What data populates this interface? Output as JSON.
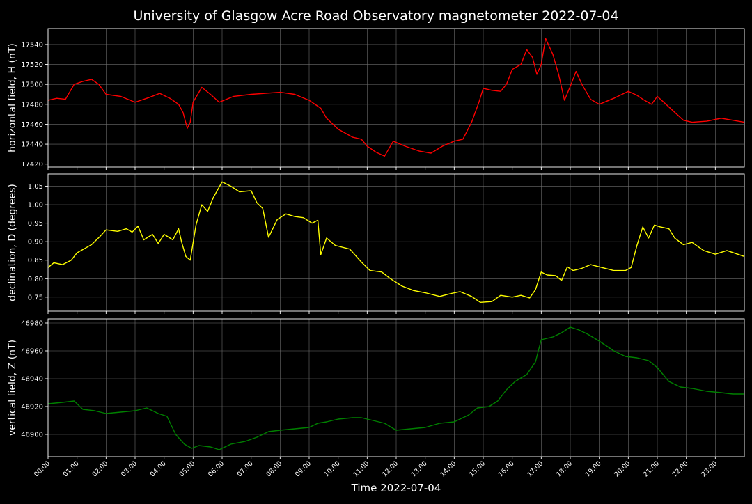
{
  "figure": {
    "title": "University of Glasgow Acre Road Observatory magnetometer 2022-07-04",
    "xlabel": "Time 2022-07-04",
    "background": "#000000"
  },
  "chart_data": [
    {
      "type": "line",
      "title": "",
      "ylabel": "horizontal field, H (nT)",
      "xlabel": "",
      "x_unit": "hours",
      "xlim": [
        0,
        24
      ],
      "ylim": [
        17417,
        17556
      ],
      "yticks": [
        17420,
        17440,
        17460,
        17480,
        17500,
        17520,
        17540
      ],
      "grid": true,
      "series": [
        {
          "color": "#ff0000",
          "points": [
            [
              0,
              17484
            ],
            [
              0.3,
              17486
            ],
            [
              0.6,
              17485
            ],
            [
              0.9,
              17500
            ],
            [
              1.2,
              17503
            ],
            [
              1.5,
              17505
            ],
            [
              1.75,
              17500
            ],
            [
              2.0,
              17490
            ],
            [
              2.5,
              17488
            ],
            [
              3.0,
              17482
            ],
            [
              3.5,
              17487
            ],
            [
              3.85,
              17491
            ],
            [
              4.2,
              17486
            ],
            [
              4.5,
              17480
            ],
            [
              4.65,
              17472
            ],
            [
              4.8,
              17456
            ],
            [
              4.9,
              17462
            ],
            [
              5.0,
              17482
            ],
            [
              5.3,
              17497
            ],
            [
              5.6,
              17490
            ],
            [
              5.9,
              17482
            ],
            [
              6.4,
              17488
            ],
            [
              7.0,
              17490
            ],
            [
              7.5,
              17491
            ],
            [
              8.0,
              17492
            ],
            [
              8.5,
              17490
            ],
            [
              9.0,
              17484
            ],
            [
              9.4,
              17476
            ],
            [
              9.6,
              17466
            ],
            [
              10.0,
              17455
            ],
            [
              10.5,
              17447
            ],
            [
              10.8,
              17445
            ],
            [
              11.0,
              17438
            ],
            [
              11.3,
              17432
            ],
            [
              11.6,
              17428
            ],
            [
              11.9,
              17443
            ],
            [
              12.3,
              17438
            ],
            [
              12.8,
              17433
            ],
            [
              13.2,
              17431
            ],
            [
              13.6,
              17438
            ],
            [
              14.0,
              17443
            ],
            [
              14.3,
              17445
            ],
            [
              14.6,
              17462
            ],
            [
              14.85,
              17482
            ],
            [
              15.0,
              17496
            ],
            [
              15.3,
              17494
            ],
            [
              15.6,
              17493
            ],
            [
              15.8,
              17500
            ],
            [
              16.0,
              17515
            ],
            [
              16.3,
              17520
            ],
            [
              16.5,
              17535
            ],
            [
              16.7,
              17527
            ],
            [
              16.85,
              17510
            ],
            [
              17.0,
              17520
            ],
            [
              17.15,
              17546
            ],
            [
              17.4,
              17530
            ],
            [
              17.6,
              17510
            ],
            [
              17.8,
              17484
            ],
            [
              18.0,
              17498
            ],
            [
              18.2,
              17513
            ],
            [
              18.4,
              17500
            ],
            [
              18.7,
              17485
            ],
            [
              19.0,
              17480
            ],
            [
              19.5,
              17486
            ],
            [
              20.0,
              17493
            ],
            [
              20.3,
              17489
            ],
            [
              20.5,
              17485
            ],
            [
              20.8,
              17480
            ],
            [
              21.0,
              17488
            ],
            [
              21.3,
              17480
            ],
            [
              21.6,
              17472
            ],
            [
              21.9,
              17464
            ],
            [
              22.2,
              17462
            ],
            [
              22.7,
              17463
            ],
            [
              23.2,
              17466
            ],
            [
              23.6,
              17464
            ],
            [
              24.0,
              17462
            ]
          ]
        }
      ]
    },
    {
      "type": "line",
      "title": "",
      "ylabel": "declination, D (degrees)",
      "xlabel": "",
      "x_unit": "hours",
      "xlim": [
        0,
        24
      ],
      "ylim": [
        0.712,
        1.083
      ],
      "yticks": [
        0.75,
        0.8,
        0.85,
        0.9,
        0.95,
        1.0,
        1.05
      ],
      "grid": true,
      "series": [
        {
          "color": "#ffff00",
          "points": [
            [
              0,
              0.83
            ],
            [
              0.2,
              0.843
            ],
            [
              0.5,
              0.838
            ],
            [
              0.8,
              0.85
            ],
            [
              1.0,
              0.87
            ],
            [
              1.5,
              0.892
            ],
            [
              1.8,
              0.915
            ],
            [
              2.0,
              0.932
            ],
            [
              2.4,
              0.928
            ],
            [
              2.7,
              0.935
            ],
            [
              2.9,
              0.926
            ],
            [
              3.1,
              0.942
            ],
            [
              3.3,
              0.905
            ],
            [
              3.6,
              0.92
            ],
            [
              3.8,
              0.895
            ],
            [
              4.0,
              0.92
            ],
            [
              4.3,
              0.905
            ],
            [
              4.5,
              0.935
            ],
            [
              4.6,
              0.9
            ],
            [
              4.75,
              0.86
            ],
            [
              4.9,
              0.85
            ],
            [
              5.1,
              0.945
            ],
            [
              5.3,
              1.0
            ],
            [
              5.5,
              0.982
            ],
            [
              5.7,
              1.02
            ],
            [
              6.0,
              1.062
            ],
            [
              6.3,
              1.05
            ],
            [
              6.6,
              1.035
            ],
            [
              7.0,
              1.038
            ],
            [
              7.2,
              1.005
            ],
            [
              7.4,
              0.99
            ],
            [
              7.6,
              0.912
            ],
            [
              7.9,
              0.96
            ],
            [
              8.2,
              0.975
            ],
            [
              8.5,
              0.968
            ],
            [
              8.8,
              0.965
            ],
            [
              9.1,
              0.95
            ],
            [
              9.3,
              0.958
            ],
            [
              9.4,
              0.865
            ],
            [
              9.6,
              0.91
            ],
            [
              9.9,
              0.89
            ],
            [
              10.4,
              0.88
            ],
            [
              10.8,
              0.845
            ],
            [
              11.1,
              0.822
            ],
            [
              11.5,
              0.818
            ],
            [
              11.8,
              0.8
            ],
            [
              12.2,
              0.78
            ],
            [
              12.6,
              0.768
            ],
            [
              13.0,
              0.762
            ],
            [
              13.5,
              0.752
            ],
            [
              13.9,
              0.76
            ],
            [
              14.2,
              0.765
            ],
            [
              14.6,
              0.752
            ],
            [
              14.9,
              0.736
            ],
            [
              15.3,
              0.738
            ],
            [
              15.6,
              0.755
            ],
            [
              16.0,
              0.75
            ],
            [
              16.3,
              0.755
            ],
            [
              16.6,
              0.748
            ],
            [
              16.8,
              0.77
            ],
            [
              17.0,
              0.818
            ],
            [
              17.2,
              0.81
            ],
            [
              17.5,
              0.808
            ],
            [
              17.7,
              0.795
            ],
            [
              17.9,
              0.832
            ],
            [
              18.1,
              0.822
            ],
            [
              18.4,
              0.828
            ],
            [
              18.7,
              0.838
            ],
            [
              19.0,
              0.832
            ],
            [
              19.5,
              0.822
            ],
            [
              19.9,
              0.822
            ],
            [
              20.1,
              0.83
            ],
            [
              20.3,
              0.89
            ],
            [
              20.5,
              0.94
            ],
            [
              20.7,
              0.91
            ],
            [
              20.9,
              0.945
            ],
            [
              21.1,
              0.94
            ],
            [
              21.4,
              0.935
            ],
            [
              21.6,
              0.91
            ],
            [
              21.9,
              0.892
            ],
            [
              22.2,
              0.898
            ],
            [
              22.6,
              0.876
            ],
            [
              23.0,
              0.866
            ],
            [
              23.4,
              0.876
            ],
            [
              24.0,
              0.86
            ]
          ]
        }
      ]
    },
    {
      "type": "line",
      "title": "",
      "ylabel": "vertical field, Z (nT)",
      "xlabel": "Time 2022-07-04",
      "x_unit": "hours",
      "xlim": [
        0,
        24
      ],
      "ylim": [
        46884,
        46983
      ],
      "yticks": [
        46900,
        46920,
        46940,
        46960,
        46980
      ],
      "xticks": [
        "00:00",
        "01:00",
        "02:00",
        "03:00",
        "04:00",
        "05:00",
        "06:00",
        "07:00",
        "08:00",
        "09:00",
        "10:00",
        "11:00",
        "12:00",
        "13:00",
        "14:00",
        "15:00",
        "16:00",
        "17:00",
        "18:00",
        "19:00",
        "20:00",
        "21:00",
        "22:00",
        "23:00"
      ],
      "grid": true,
      "series": [
        {
          "color": "#008000",
          "points": [
            [
              0,
              46922
            ],
            [
              0.5,
              46923
            ],
            [
              0.9,
              46924
            ],
            [
              1.2,
              46918
            ],
            [
              1.6,
              46917
            ],
            [
              2.0,
              46915
            ],
            [
              2.5,
              46916
            ],
            [
              3.0,
              46917
            ],
            [
              3.4,
              46919
            ],
            [
              3.8,
              46915
            ],
            [
              4.1,
              46913
            ],
            [
              4.4,
              46900
            ],
            [
              4.7,
              46893
            ],
            [
              4.95,
              46890
            ],
            [
              5.2,
              46892
            ],
            [
              5.6,
              46891
            ],
            [
              5.9,
              46889
            ],
            [
              6.3,
              46893
            ],
            [
              6.8,
              46895
            ],
            [
              7.2,
              46898
            ],
            [
              7.6,
              46902
            ],
            [
              8.0,
              46903
            ],
            [
              8.5,
              46904
            ],
            [
              9.0,
              46905
            ],
            [
              9.3,
              46908
            ],
            [
              9.6,
              46909
            ],
            [
              10.0,
              46911
            ],
            [
              10.5,
              46912
            ],
            [
              10.8,
              46912
            ],
            [
              11.2,
              46910
            ],
            [
              11.6,
              46908
            ],
            [
              12.0,
              46903
            ],
            [
              12.5,
              46904
            ],
            [
              13.0,
              46905
            ],
            [
              13.5,
              46908
            ],
            [
              14.0,
              46909
            ],
            [
              14.5,
              46914
            ],
            [
              14.8,
              46919
            ],
            [
              15.2,
              46920
            ],
            [
              15.5,
              46924
            ],
            [
              15.8,
              46932
            ],
            [
              16.1,
              46938
            ],
            [
              16.5,
              46943
            ],
            [
              16.8,
              46952
            ],
            [
              17.0,
              46968
            ],
            [
              17.4,
              46970
            ],
            [
              17.7,
              46973
            ],
            [
              18.0,
              46977
            ],
            [
              18.3,
              46975
            ],
            [
              18.6,
              46972
            ],
            [
              19.0,
              46967
            ],
            [
              19.5,
              46960
            ],
            [
              19.9,
              46956
            ],
            [
              20.3,
              46955
            ],
            [
              20.7,
              46953
            ],
            [
              21.0,
              46948
            ],
            [
              21.4,
              46938
            ],
            [
              21.8,
              46934
            ],
            [
              22.2,
              46933
            ],
            [
              22.7,
              46931
            ],
            [
              23.2,
              46930
            ],
            [
              23.6,
              46929
            ],
            [
              24.0,
              46929
            ]
          ]
        }
      ]
    }
  ]
}
